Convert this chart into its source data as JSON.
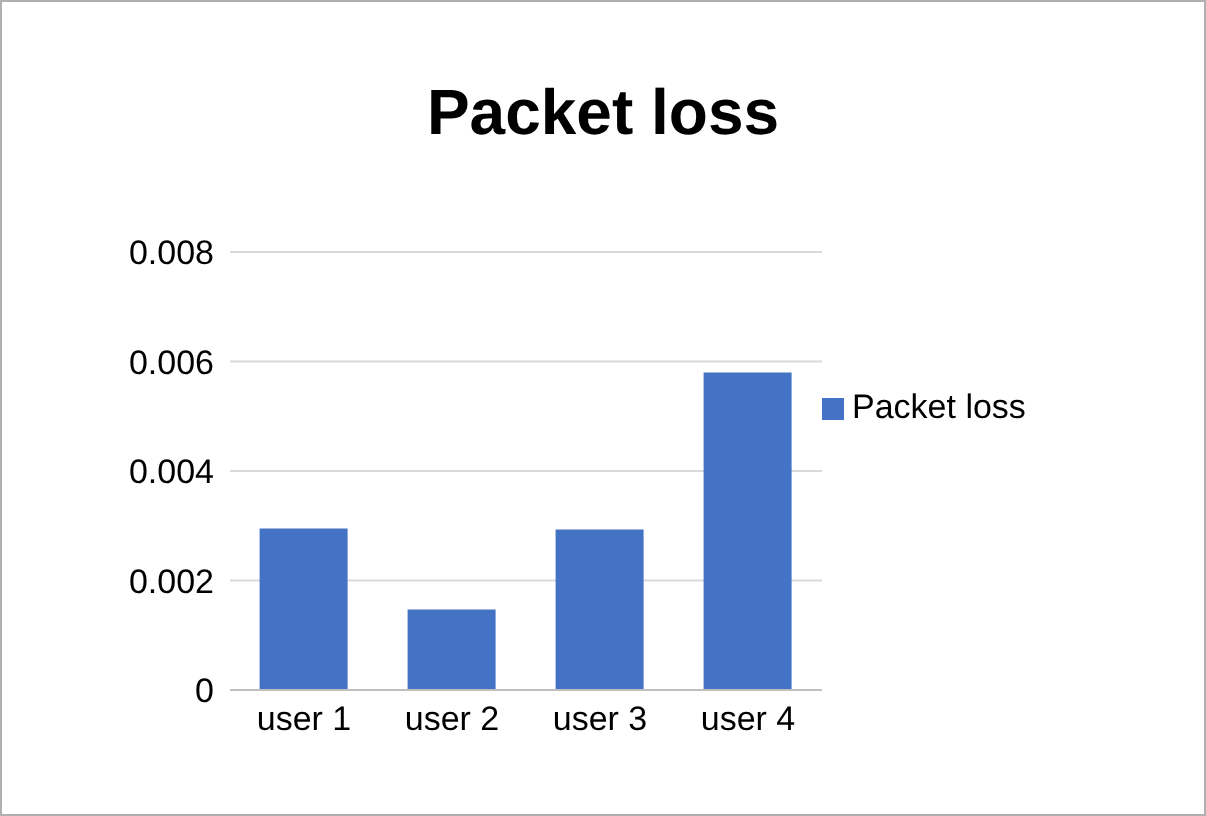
{
  "chart_data": {
    "type": "bar",
    "title": "Packet loss",
    "categories": [
      "user 1",
      "user 2",
      "user 3",
      "user 4"
    ],
    "series": [
      {
        "name": "Packet loss",
        "color": "#4472c4",
        "values": [
          0.00295,
          0.00147,
          0.00293,
          0.0058
        ]
      }
    ],
    "ylim": [
      0,
      0.008
    ],
    "yticks": [
      0,
      0.002,
      0.004,
      0.006,
      0.008
    ],
    "grid": "y",
    "legend": "right"
  }
}
